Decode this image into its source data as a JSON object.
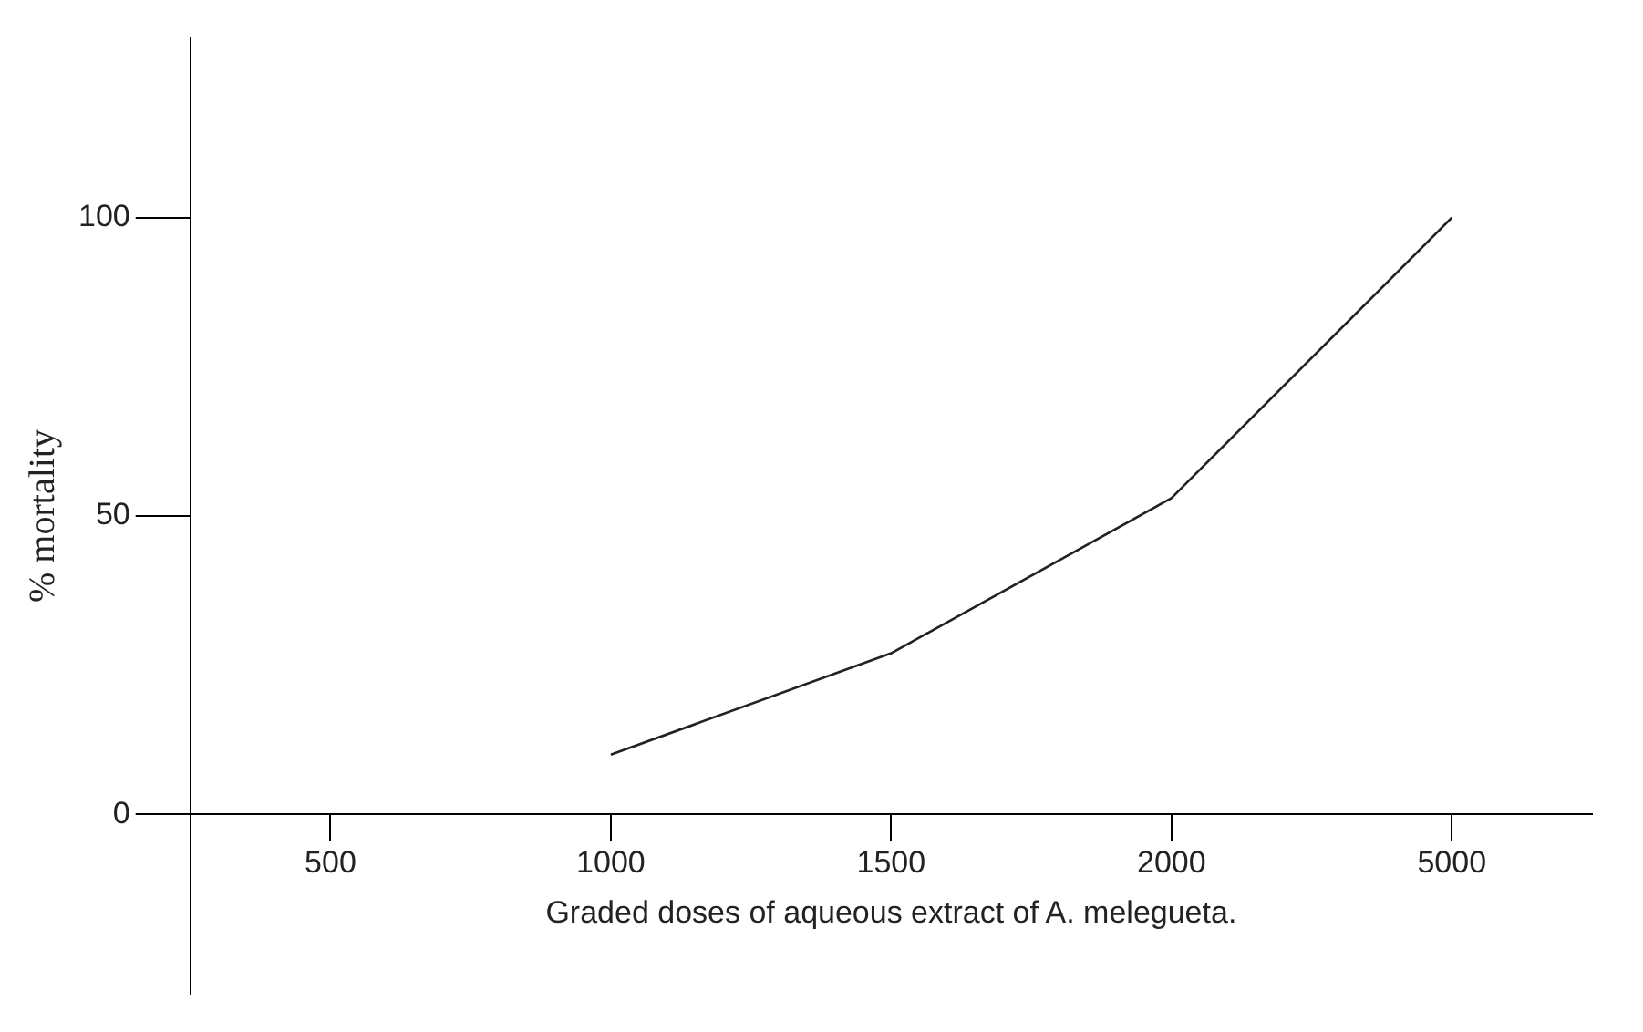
{
  "chart_data": {
    "type": "line",
    "xlabel": "Graded doses of aqueous extract of A. melegueta.",
    "ylabel": "% mortality",
    "categories": [
      "500",
      "1000",
      "1500",
      "2000",
      "5000"
    ],
    "series": [
      {
        "color": "#222222",
        "values": [
          null,
          10,
          27,
          53,
          100
        ]
      }
    ],
    "ylim": [
      -30,
      130
    ],
    "yticks": [
      0,
      50,
      100
    ],
    "marker": "none",
    "line_style": "solid",
    "legend": false
  }
}
